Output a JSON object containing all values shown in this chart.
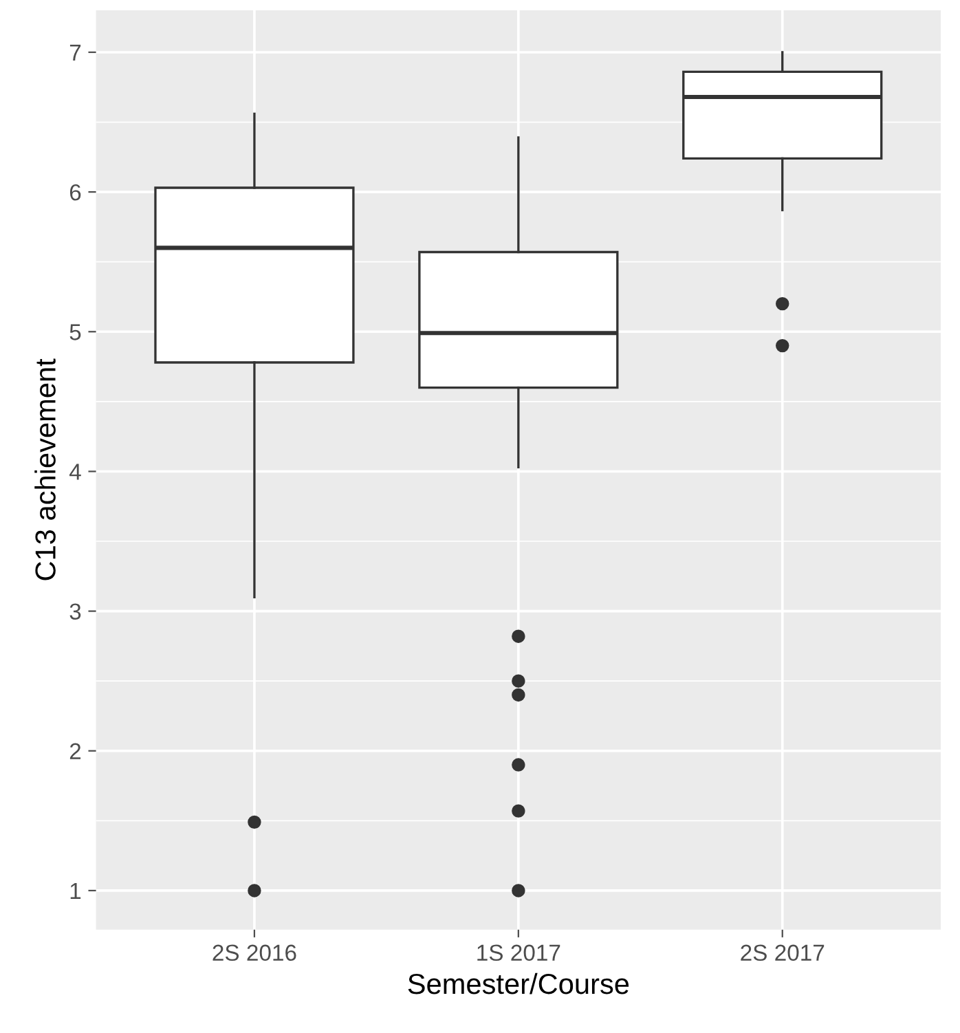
{
  "chart_data": {
    "type": "box",
    "xlabel": "Semester/Course",
    "ylabel": "C13 achievement",
    "categories": [
      "2S 2016",
      "1S 2017",
      "2S 2017"
    ],
    "boxes": [
      {
        "low": 3.1,
        "q1": 4.78,
        "median": 5.6,
        "q3": 6.03,
        "high": 6.56,
        "outliers": [
          1.49,
          1.0
        ]
      },
      {
        "low": 4.03,
        "q1": 4.6,
        "median": 4.99,
        "q3": 5.57,
        "high": 6.39,
        "outliers": [
          2.82,
          2.5,
          2.4,
          1.9,
          1.57,
          1.0
        ]
      },
      {
        "low": 5.87,
        "q1": 6.24,
        "median": 6.68,
        "q3": 6.86,
        "high": 7.0,
        "outliers": [
          5.2,
          4.9
        ]
      }
    ],
    "ylim": [
      0.72,
      7.3
    ],
    "yticks": [
      1,
      2,
      3,
      4,
      5,
      6,
      7
    ],
    "grid": true
  }
}
